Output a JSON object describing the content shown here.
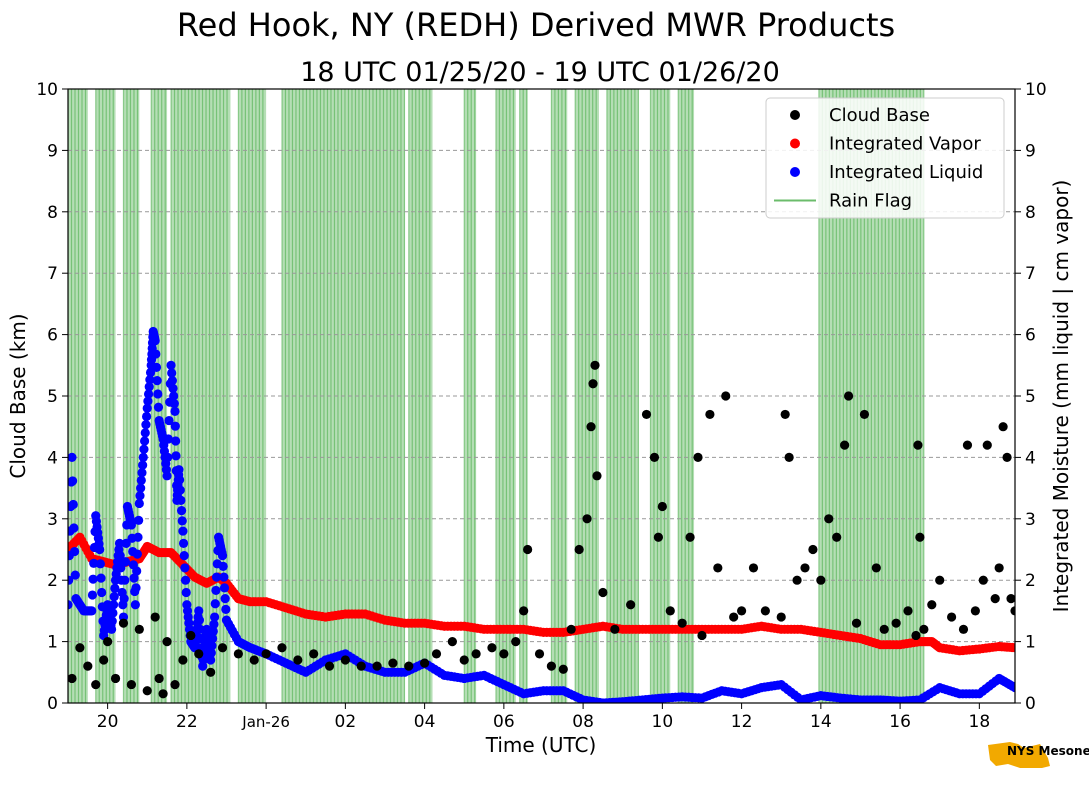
{
  "chart_data": {
    "type": "scatter",
    "title": "Red Hook, NY (REDH) Derived MWR Products",
    "subtitle": "18 UTC 01/25/20 - 19 UTC 01/26/20",
    "xlabel": "Time (UTC)",
    "ylabel": "Cloud Base (km)",
    "ylabel_right": "Integrated Moisture (mm liquid | cm vapor)",
    "xlim": [
      19.0,
      42.9
    ],
    "ylim": [
      0,
      10
    ],
    "x_units": "hours since 00 UTC 01/25/20",
    "x_ticks": [
      {
        "value": 20,
        "label": "20"
      },
      {
        "value": 22,
        "label": "22"
      },
      {
        "value": 24,
        "label": "Jan-26"
      },
      {
        "value": 26,
        "label": "02"
      },
      {
        "value": 28,
        "label": "04"
      },
      {
        "value": 30,
        "label": "06"
      },
      {
        "value": 32,
        "label": "08"
      },
      {
        "value": 34,
        "label": "10"
      },
      {
        "value": 36,
        "label": "12"
      },
      {
        "value": 38,
        "label": "14"
      },
      {
        "value": 40,
        "label": "16"
      },
      {
        "value": 42,
        "label": "18"
      }
    ],
    "y_ticks": [
      "0",
      "1",
      "2",
      "3",
      "4",
      "5",
      "6",
      "7",
      "8",
      "9",
      "10"
    ],
    "grid": "horizontal dashed",
    "legend_position": "top-right",
    "legend": [
      {
        "label": "Cloud Base",
        "marker": "dot",
        "color": "#000000"
      },
      {
        "label": "Integrated Vapor",
        "marker": "dot",
        "color": "#ff0000"
      },
      {
        "label": "Integrated Liquid",
        "marker": "dot",
        "color": "#0000ff"
      },
      {
        "label": "Rain Flag",
        "marker": "line",
        "color": "#2ca02c"
      }
    ],
    "rain_flag_periods": [
      [
        19.0,
        19.5
      ],
      [
        19.7,
        20.2
      ],
      [
        20.4,
        20.8
      ],
      [
        21.1,
        21.5
      ],
      [
        21.6,
        23.1
      ],
      [
        23.3,
        24.0
      ],
      [
        24.4,
        27.5
      ],
      [
        27.6,
        28.2
      ],
      [
        29.0,
        29.3
      ],
      [
        29.8,
        30.3
      ],
      [
        30.4,
        30.6
      ],
      [
        31.2,
        31.6
      ],
      [
        31.8,
        32.4
      ],
      [
        32.6,
        33.4
      ],
      [
        33.7,
        34.2
      ],
      [
        34.4,
        34.8
      ],
      [
        37.95,
        40.6
      ]
    ],
    "series": [
      {
        "name": "Integrated Vapor",
        "color": "#ff0000",
        "points": [
          [
            19.0,
            2.5
          ],
          [
            19.3,
            2.7
          ],
          [
            19.6,
            2.35
          ],
          [
            19.9,
            2.3
          ],
          [
            20.2,
            2.25
          ],
          [
            20.5,
            2.3
          ],
          [
            20.8,
            2.35
          ],
          [
            21.0,
            2.55
          ],
          [
            21.3,
            2.45
          ],
          [
            21.6,
            2.45
          ],
          [
            21.9,
            2.25
          ],
          [
            22.2,
            2.05
          ],
          [
            22.5,
            1.95
          ],
          [
            22.8,
            2.05
          ],
          [
            23.0,
            1.95
          ],
          [
            23.3,
            1.7
          ],
          [
            23.6,
            1.65
          ],
          [
            24.0,
            1.65
          ],
          [
            24.5,
            1.55
          ],
          [
            25.0,
            1.45
          ],
          [
            25.5,
            1.4
          ],
          [
            26.0,
            1.45
          ],
          [
            26.5,
            1.45
          ],
          [
            27.0,
            1.35
          ],
          [
            27.5,
            1.3
          ],
          [
            28.0,
            1.3
          ],
          [
            28.5,
            1.25
          ],
          [
            29.0,
            1.25
          ],
          [
            29.5,
            1.2
          ],
          [
            30.0,
            1.2
          ],
          [
            30.5,
            1.2
          ],
          [
            31.0,
            1.15
          ],
          [
            31.5,
            1.15
          ],
          [
            32.0,
            1.2
          ],
          [
            32.5,
            1.25
          ],
          [
            33.0,
            1.2
          ],
          [
            33.5,
            1.2
          ],
          [
            34.0,
            1.2
          ],
          [
            34.5,
            1.2
          ],
          [
            35.0,
            1.2
          ],
          [
            35.5,
            1.2
          ],
          [
            36.0,
            1.2
          ],
          [
            36.5,
            1.25
          ],
          [
            37.0,
            1.2
          ],
          [
            37.5,
            1.2
          ],
          [
            38.0,
            1.15
          ],
          [
            38.5,
            1.1
          ],
          [
            39.0,
            1.05
          ],
          [
            39.5,
            0.95
          ],
          [
            40.0,
            0.95
          ],
          [
            40.5,
            1.0
          ],
          [
            40.8,
            1.0
          ],
          [
            41.0,
            0.9
          ],
          [
            41.5,
            0.85
          ],
          [
            42.0,
            0.88
          ],
          [
            42.5,
            0.92
          ],
          [
            42.9,
            0.9
          ]
        ]
      },
      {
        "name": "Integrated Liquid",
        "color": "#0000ff",
        "points": [
          [
            19.0,
            1.6
          ],
          [
            19.1,
            4.0
          ],
          [
            19.2,
            1.7
          ],
          [
            19.4,
            1.5
          ],
          [
            19.6,
            1.5
          ],
          [
            19.7,
            3.05
          ],
          [
            19.8,
            2.5
          ],
          [
            19.9,
            1.1
          ],
          [
            20.0,
            1.6
          ],
          [
            20.1,
            1.2
          ],
          [
            20.2,
            2.0
          ],
          [
            20.3,
            2.6
          ],
          [
            20.4,
            1.4
          ],
          [
            20.5,
            3.2
          ],
          [
            20.6,
            2.9
          ],
          [
            20.7,
            1.6
          ],
          [
            20.8,
            3.25
          ],
          [
            20.9,
            4.0
          ],
          [
            21.0,
            4.8
          ],
          [
            21.1,
            5.5
          ],
          [
            21.15,
            6.05
          ],
          [
            21.2,
            5.9
          ],
          [
            21.3,
            4.6
          ],
          [
            21.4,
            4.3
          ],
          [
            21.5,
            3.7
          ],
          [
            21.6,
            5.5
          ],
          [
            21.7,
            4.75
          ],
          [
            21.75,
            3.3
          ],
          [
            21.8,
            3.8
          ],
          [
            21.9,
            2.8
          ],
          [
            22.0,
            1.6
          ],
          [
            22.1,
            1.0
          ],
          [
            22.2,
            0.9
          ],
          [
            22.3,
            1.5
          ],
          [
            22.4,
            0.6
          ],
          [
            22.5,
            1.2
          ],
          [
            22.6,
            0.7
          ],
          [
            22.7,
            1.4
          ],
          [
            22.8,
            2.7
          ],
          [
            22.9,
            2.4
          ],
          [
            23.0,
            1.35
          ],
          [
            23.3,
            1.0
          ],
          [
            23.6,
            0.9
          ],
          [
            24.0,
            0.8
          ],
          [
            24.5,
            0.65
          ],
          [
            25.0,
            0.5
          ],
          [
            25.5,
            0.7
          ],
          [
            26.0,
            0.8
          ],
          [
            26.5,
            0.6
          ],
          [
            27.0,
            0.5
          ],
          [
            27.5,
            0.5
          ],
          [
            28.0,
            0.65
          ],
          [
            28.5,
            0.45
          ],
          [
            29.0,
            0.4
          ],
          [
            29.5,
            0.45
          ],
          [
            30.0,
            0.3
          ],
          [
            30.5,
            0.15
          ],
          [
            31.0,
            0.2
          ],
          [
            31.5,
            0.2
          ],
          [
            32.0,
            0.05
          ],
          [
            32.5,
            0.0
          ],
          [
            33.0,
            0.02
          ],
          [
            33.5,
            0.05
          ],
          [
            34.0,
            0.08
          ],
          [
            34.5,
            0.1
          ],
          [
            35.0,
            0.08
          ],
          [
            35.5,
            0.2
          ],
          [
            36.0,
            0.15
          ],
          [
            36.5,
            0.25
          ],
          [
            37.0,
            0.3
          ],
          [
            37.5,
            0.05
          ],
          [
            38.0,
            0.12
          ],
          [
            38.5,
            0.08
          ],
          [
            39.0,
            0.05
          ],
          [
            39.5,
            0.05
          ],
          [
            40.0,
            0.03
          ],
          [
            40.5,
            0.05
          ],
          [
            41.0,
            0.25
          ],
          [
            41.5,
            0.15
          ],
          [
            42.0,
            0.15
          ],
          [
            42.5,
            0.4
          ],
          [
            42.9,
            0.25
          ]
        ]
      },
      {
        "name": "Cloud Base",
        "color": "#000000",
        "points": [
          [
            19.1,
            0.4
          ],
          [
            19.3,
            0.9
          ],
          [
            19.5,
            0.6
          ],
          [
            19.7,
            0.3
          ],
          [
            19.9,
            0.7
          ],
          [
            20.0,
            1.0
          ],
          [
            20.2,
            0.4
          ],
          [
            20.4,
            1.3
          ],
          [
            20.6,
            0.3
          ],
          [
            20.8,
            1.2
          ],
          [
            21.0,
            0.2
          ],
          [
            21.2,
            1.4
          ],
          [
            21.3,
            0.4
          ],
          [
            21.4,
            0.15
          ],
          [
            21.5,
            1.0
          ],
          [
            21.7,
            0.3
          ],
          [
            21.9,
            0.7
          ],
          [
            22.1,
            1.1
          ],
          [
            22.3,
            0.8
          ],
          [
            22.6,
            0.5
          ],
          [
            22.9,
            0.9
          ],
          [
            23.3,
            0.8
          ],
          [
            23.7,
            0.7
          ],
          [
            24.0,
            0.8
          ],
          [
            24.4,
            0.9
          ],
          [
            24.8,
            0.7
          ],
          [
            25.2,
            0.8
          ],
          [
            25.6,
            0.6
          ],
          [
            26.0,
            0.7
          ],
          [
            26.4,
            0.6
          ],
          [
            26.8,
            0.6
          ],
          [
            27.2,
            0.65
          ],
          [
            27.6,
            0.6
          ],
          [
            28.0,
            0.65
          ],
          [
            28.3,
            0.8
          ],
          [
            28.7,
            1.0
          ],
          [
            29.0,
            0.7
          ],
          [
            29.3,
            0.8
          ],
          [
            29.7,
            0.9
          ],
          [
            30.0,
            0.8
          ],
          [
            30.3,
            1.0
          ],
          [
            30.5,
            1.5
          ],
          [
            30.6,
            2.5
          ],
          [
            30.9,
            0.8
          ],
          [
            31.2,
            0.6
          ],
          [
            31.5,
            0.55
          ],
          [
            31.7,
            1.2
          ],
          [
            31.9,
            2.5
          ],
          [
            32.1,
            3.0
          ],
          [
            32.2,
            4.5
          ],
          [
            32.25,
            5.2
          ],
          [
            32.3,
            5.5
          ],
          [
            32.35,
            3.7
          ],
          [
            32.5,
            1.8
          ],
          [
            32.8,
            1.2
          ],
          [
            33.2,
            1.6
          ],
          [
            33.6,
            4.7
          ],
          [
            33.8,
            4.0
          ],
          [
            33.9,
            2.7
          ],
          [
            34.0,
            3.2
          ],
          [
            34.2,
            1.5
          ],
          [
            34.5,
            1.3
          ],
          [
            34.7,
            2.7
          ],
          [
            34.9,
            4.0
          ],
          [
            35.0,
            1.1
          ],
          [
            35.2,
            4.7
          ],
          [
            35.4,
            2.2
          ],
          [
            35.6,
            5.0
          ],
          [
            35.8,
            1.4
          ],
          [
            36.0,
            1.5
          ],
          [
            36.3,
            2.2
          ],
          [
            36.6,
            1.5
          ],
          [
            37.0,
            1.4
          ],
          [
            37.1,
            4.7
          ],
          [
            37.2,
            4.0
          ],
          [
            37.4,
            2.0
          ],
          [
            37.6,
            2.2
          ],
          [
            37.8,
            2.5
          ],
          [
            38.0,
            2.0
          ],
          [
            38.2,
            3.0
          ],
          [
            38.4,
            2.7
          ],
          [
            38.6,
            4.2
          ],
          [
            38.7,
            5.0
          ],
          [
            38.9,
            1.3
          ],
          [
            39.1,
            4.7
          ],
          [
            39.4,
            2.2
          ],
          [
            39.6,
            1.2
          ],
          [
            39.9,
            1.3
          ],
          [
            40.2,
            1.5
          ],
          [
            40.4,
            1.1
          ],
          [
            40.45,
            4.2
          ],
          [
            40.5,
            2.7
          ],
          [
            40.6,
            1.2
          ],
          [
            40.8,
            1.6
          ],
          [
            41.0,
            2.0
          ],
          [
            41.3,
            1.4
          ],
          [
            41.6,
            1.2
          ],
          [
            41.7,
            4.2
          ],
          [
            41.9,
            1.5
          ],
          [
            42.1,
            2.0
          ],
          [
            42.2,
            4.2
          ],
          [
            42.4,
            1.7
          ],
          [
            42.5,
            2.2
          ],
          [
            42.6,
            4.5
          ],
          [
            42.7,
            4.0
          ],
          [
            42.8,
            1.7
          ],
          [
            42.9,
            1.5
          ]
        ]
      }
    ]
  },
  "logo": {
    "text": "NYS Mesonet",
    "color": "#3b1e6e",
    "map_color": "#f2a900"
  }
}
